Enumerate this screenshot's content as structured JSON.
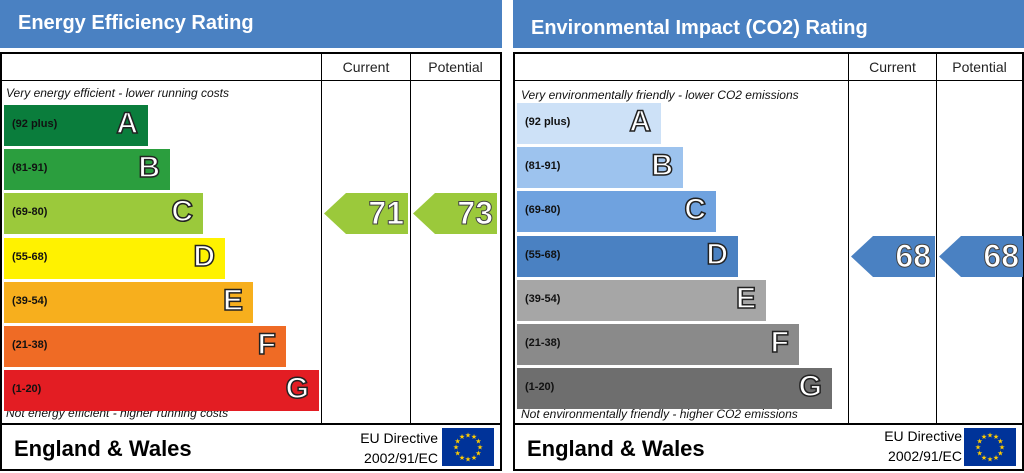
{
  "chart_data": [
    {
      "type": "bar",
      "title": "Energy Efficiency Rating",
      "column_headers": [
        "Current",
        "Potential"
      ],
      "top_caption": "Very energy efficient - lower running costs",
      "bottom_caption": "Not energy efficient - higher running costs",
      "bands": [
        {
          "range": "(92 plus)",
          "letter": "A",
          "color": "#0a7d3c"
        },
        {
          "range": "(81-91)",
          "letter": "B",
          "color": "#2b9e3e"
        },
        {
          "range": "(69-80)",
          "letter": "C",
          "color": "#9bc93b"
        },
        {
          "range": "(55-68)",
          "letter": "D",
          "color": "#fff200"
        },
        {
          "range": "(39-54)",
          "letter": "E",
          "color": "#f7af1d"
        },
        {
          "range": "(21-38)",
          "letter": "F",
          "color": "#ef6b25"
        },
        {
          "range": "(1-20)",
          "letter": "G",
          "color": "#e31d23"
        }
      ],
      "current": {
        "value": "71",
        "band": "C",
        "color": "#9bc93b"
      },
      "potential": {
        "value": "73",
        "band": "C",
        "color": "#9bc93b"
      },
      "region": "England & Wales",
      "directive_line1": "EU Directive",
      "directive_line2": "2002/91/EC"
    },
    {
      "type": "bar",
      "title": "Environmental Impact (CO2) Rating",
      "column_headers": [
        "Current",
        "Potential"
      ],
      "top_caption": "Very environmentally friendly - lower CO2 emissions",
      "bottom_caption": "Not environmentally friendly - higher CO2 emissions",
      "bands": [
        {
          "range": "(92 plus)",
          "letter": "A",
          "color": "#cde1f7"
        },
        {
          "range": "(81-91)",
          "letter": "B",
          "color": "#9dc3ee"
        },
        {
          "range": "(69-80)",
          "letter": "C",
          "color": "#6fa2df"
        },
        {
          "range": "(55-68)",
          "letter": "D",
          "color": "#4a81c2"
        },
        {
          "range": "(39-54)",
          "letter": "E",
          "color": "#a6a6a6"
        },
        {
          "range": "(21-38)",
          "letter": "F",
          "color": "#8a8a8a"
        },
        {
          "range": "(1-20)",
          "letter": "G",
          "color": "#6e6e6e"
        }
      ],
      "current": {
        "value": "68",
        "band": "D",
        "color": "#4a81c2"
      },
      "potential": {
        "value": "68",
        "band": "D",
        "color": "#4a81c2"
      },
      "region": "England & Wales",
      "directive_line1": "EU Directive",
      "directive_line2": "2002/91/EC"
    }
  ]
}
